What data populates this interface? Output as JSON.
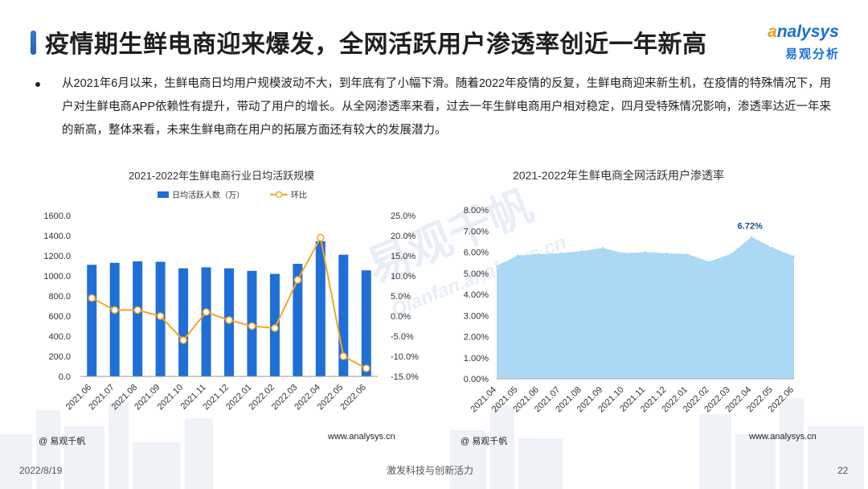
{
  "header": {
    "title": "疫情期生鲜电商迎来爆发，全网活跃用户渗透率创近一年新高",
    "logo_en_a": "a",
    "logo_en_rest": "nalysys",
    "logo_cn": "易观分析"
  },
  "paragraph": "从2021年6月以来，生鲜电商日均用户规模波动不大，到年底有了小幅下滑。随着2022年疫情的反复，生鲜电商迎来新生机，在疫情的特殊情况下，用户对生鲜电商APP依赖性有提升，带动了用户的增长。从全网渗透率来看，过去一年生鲜电商用户相对稳定，四月受特殊情况影响，渗透率达近一年来的新高，整体来看，未来生鲜电商在用户的拓展方面还有较大的发展潜力。",
  "watermark": {
    "cn": "易观千帆",
    "en": "Qianfan.analysys.cn"
  },
  "chart_data": [
    {
      "type": "bar",
      "title": "2021-2022年生鲜电商行业日均活跃规模",
      "categories": [
        "2021.06",
        "2021.07",
        "2021.08",
        "2021.09",
        "2021.10",
        "2021.11",
        "2021.12",
        "2022.01",
        "2022.02",
        "2022.03",
        "2022.04",
        "2022.05",
        "2022.06"
      ],
      "series": [
        {
          "name": "日均活跃人数（万）",
          "type": "bar",
          "axis": "left",
          "color": "#1f6fd6",
          "values": [
            1110,
            1130,
            1145,
            1140,
            1075,
            1085,
            1075,
            1050,
            1020,
            1120,
            1345,
            1210,
            1055
          ]
        },
        {
          "name": "环比",
          "type": "line",
          "axis": "right",
          "color": "#f5a623",
          "values": [
            4.5,
            1.5,
            1.5,
            0.0,
            -6.0,
            1.0,
            -1.0,
            -2.5,
            -3.0,
            9.0,
            19.5,
            -10.0,
            -13.0
          ]
        }
      ],
      "ylim_left": [
        0,
        1600
      ],
      "yticks_left": [
        "1600.0",
        "1400.0",
        "1200.0",
        "1000.0",
        "800.0",
        "600.0",
        "400.0",
        "200.0",
        "0.0"
      ],
      "ylim_right": [
        -15,
        25
      ],
      "yticks_right": [
        "25.0%",
        "20.0%",
        "15.0%",
        "10.0%",
        "5.0%",
        "0.0%",
        "-5.0%",
        "-10.0%",
        "-15.0%"
      ],
      "legend_position": "top",
      "source": "@ 易观千帆",
      "site": "www.analysys.cn"
    },
    {
      "type": "area",
      "title": "2021-2022年生鲜电商全网活跃用户渗透率",
      "categories": [
        "2021.04",
        "2021.05",
        "2021.06",
        "2021.07",
        "2021.08",
        "2021.09",
        "2021.10",
        "2021.11",
        "2021.12",
        "2022.01",
        "2022.02",
        "2022.03",
        "2022.04",
        "2022.05",
        "2022.06"
      ],
      "values": [
        5.35,
        5.85,
        5.9,
        5.95,
        6.05,
        6.2,
        5.95,
        6.0,
        5.95,
        5.9,
        5.55,
        5.9,
        6.72,
        6.2,
        5.8
      ],
      "ylim": [
        0,
        8
      ],
      "yticks": [
        "8.00%",
        "7.00%",
        "6.00%",
        "5.00%",
        "4.00%",
        "3.00%",
        "2.00%",
        "1.00%",
        "0.00%"
      ],
      "annotation": {
        "label": "6.72%",
        "category": "2022.04"
      },
      "color": "#aad8f5",
      "source": "@ 易观千帆",
      "site": "www.analysys.cn"
    }
  ],
  "footer": {
    "date": "2022/8/19",
    "slogan": "激发科技与创新活力",
    "page": "22"
  }
}
